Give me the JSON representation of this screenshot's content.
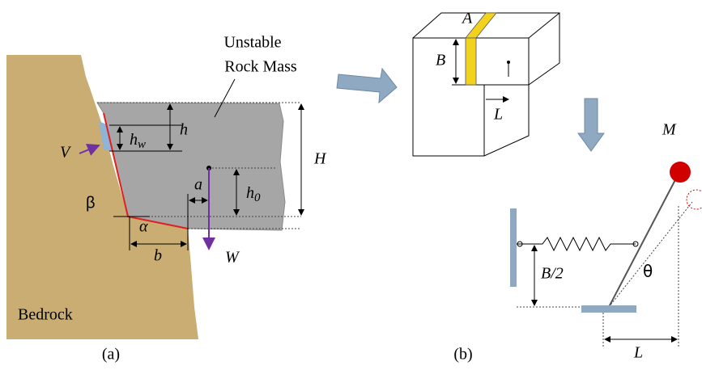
{
  "panel_a": {
    "label": "(a)",
    "mass_label": [
      "Unstable",
      "Rock Mass"
    ],
    "h": "h",
    "h_w": {
      "base": "h",
      "sub": "w"
    },
    "H": "H",
    "V": "V",
    "a": "a",
    "h_0": {
      "base": "h",
      "sub": "0"
    },
    "beta": "β",
    "alpha": "α",
    "b": "b",
    "W": "W",
    "bedrock": "Bedrock"
  },
  "panel_b": {
    "label": "(b)",
    "A": "A",
    "B": "B",
    "L_block": "L",
    "M": "M",
    "theta": "θ",
    "B_half": "B/2",
    "L_model": "L"
  }
}
